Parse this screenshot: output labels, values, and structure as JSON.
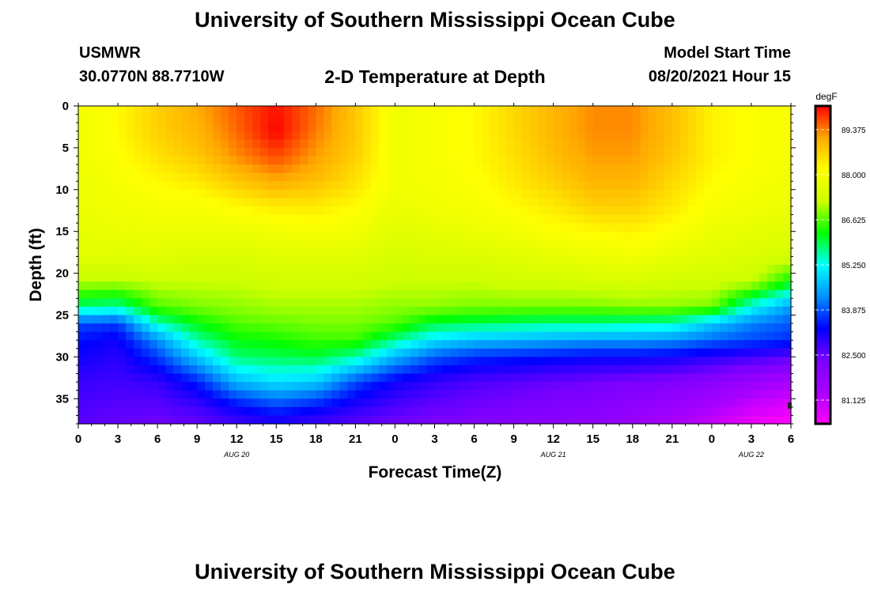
{
  "page": {
    "title_top": "University of Southern Mississippi Ocean Cube",
    "title_bottom": "University of Southern Mississippi Ocean Cube",
    "station": "USMWR",
    "coords": "30.0770N  88.7710W",
    "chart_title": "2-D Temperature at Depth",
    "model_start_label": "Model Start Time",
    "model_start_value": "08/20/2021 Hour 15"
  },
  "chart_data": {
    "type": "heatmap",
    "title": "2-D Temperature at Depth",
    "xlabel": "Forecast Time(Z)",
    "ylabel": "Depth (ft)",
    "x_range_hours": [
      0,
      54
    ],
    "ylim": [
      0,
      38
    ],
    "y_inverted": true,
    "x_ticks": [
      {
        "h": 0,
        "label": "0"
      },
      {
        "h": 3,
        "label": "3"
      },
      {
        "h": 6,
        "label": "6"
      },
      {
        "h": 9,
        "label": "9"
      },
      {
        "h": 12,
        "label": "12"
      },
      {
        "h": 15,
        "label": "15"
      },
      {
        "h": 18,
        "label": "18"
      },
      {
        "h": 21,
        "label": "21"
      },
      {
        "h": 24,
        "label": "0"
      },
      {
        "h": 27,
        "label": "3"
      },
      {
        "h": 30,
        "label": "6"
      },
      {
        "h": 33,
        "label": "9"
      },
      {
        "h": 36,
        "label": "12"
      },
      {
        "h": 39,
        "label": "15"
      },
      {
        "h": 42,
        "label": "18"
      },
      {
        "h": 45,
        "label": "21"
      },
      {
        "h": 48,
        "label": "0"
      },
      {
        "h": 51,
        "label": "3"
      },
      {
        "h": 54,
        "label": "6"
      }
    ],
    "date_labels": [
      {
        "h": 12,
        "label": "AUG 20"
      },
      {
        "h": 36,
        "label": "AUG 21"
      },
      {
        "h": 51,
        "label": "AUG 22"
      }
    ],
    "y_ticks": [
      0,
      5,
      10,
      15,
      20,
      25,
      30,
      35
    ],
    "colorbar": {
      "unit": "degF",
      "min": 80.4,
      "max": 90.1,
      "tick_values": [
        89.375,
        88.0,
        86.625,
        85.25,
        83.875,
        82.5,
        81.125
      ],
      "tick_labels": [
        "89.375",
        "88.000",
        "86.625",
        "85.250",
        "83.875",
        "82.500",
        "81.125"
      ],
      "colors": [
        "#ff00ff",
        "#aa00ff",
        "#7a00ff",
        "#0000ff",
        "#0090ff",
        "#00ffff",
        "#00ff00",
        "#ccff00",
        "#ffff00",
        "#ffaa00",
        "#ff0000"
      ]
    },
    "grid_x_hours": [
      0,
      3,
      6,
      9,
      12,
      15,
      18,
      21,
      24,
      27,
      30,
      33,
      36,
      39,
      42,
      45,
      48,
      51,
      54
    ],
    "grid_depths_ft": [
      0,
      3,
      6,
      9,
      12,
      15,
      18,
      21,
      24,
      26,
      28,
      30,
      33,
      36,
      38
    ],
    "values_degF": [
      [
        87.9,
        87.9,
        87.9,
        87.8,
        87.8,
        87.7,
        87.6,
        87.1,
        85.8,
        83.8,
        83.4,
        83.2,
        82.9,
        82.7,
        82.6
      ],
      [
        88.2,
        88.2,
        88.1,
        88.0,
        87.9,
        87.8,
        87.6,
        87.1,
        85.6,
        83.7,
        83.2,
        83.0,
        82.8,
        82.6,
        82.5
      ],
      [
        88.7,
        88.7,
        88.5,
        88.2,
        88.0,
        87.8,
        87.6,
        87.2,
        86.6,
        85.5,
        84.3,
        83.7,
        82.9,
        82.6,
        82.4
      ],
      [
        89.1,
        89.0,
        88.8,
        88.4,
        88.0,
        87.8,
        87.5,
        87.2,
        86.8,
        86.2,
        85.6,
        84.8,
        83.5,
        82.8,
        82.5
      ],
      [
        89.6,
        89.5,
        89.3,
        88.8,
        88.2,
        87.8,
        87.5,
        87.2,
        86.9,
        86.6,
        86.2,
        85.8,
        84.6,
        83.3,
        82.8
      ],
      [
        90.0,
        90.1,
        89.7,
        89.1,
        88.4,
        87.9,
        87.6,
        87.3,
        87.0,
        86.7,
        86.3,
        85.9,
        85.0,
        83.7,
        83.0
      ],
      [
        89.5,
        89.4,
        89.2,
        88.9,
        88.4,
        88.0,
        87.6,
        87.3,
        87.0,
        86.8,
        86.5,
        86.0,
        84.8,
        83.4,
        82.8
      ],
      [
        88.8,
        88.8,
        88.7,
        88.5,
        88.2,
        87.9,
        87.6,
        87.3,
        87.0,
        86.8,
        86.5,
        85.6,
        83.8,
        83.0,
        82.6
      ],
      [
        87.9,
        87.9,
        87.9,
        87.9,
        87.8,
        87.6,
        87.4,
        87.2,
        86.9,
        86.6,
        85.7,
        84.6,
        83.2,
        82.7,
        82.4
      ],
      [
        88.0,
        88.0,
        88.0,
        88.0,
        87.9,
        87.7,
        87.5,
        87.2,
        86.9,
        86.0,
        85.0,
        83.9,
        82.9,
        82.5,
        82.3
      ],
      [
        88.2,
        88.2,
        88.2,
        88.1,
        88.0,
        87.8,
        87.5,
        87.2,
        86.8,
        85.9,
        84.7,
        83.6,
        82.7,
        82.4,
        82.2
      ],
      [
        88.6,
        88.6,
        88.5,
        88.4,
        88.2,
        87.9,
        87.6,
        87.3,
        86.8,
        85.8,
        84.6,
        83.5,
        82.6,
        82.3,
        82.1
      ],
      [
        89.0,
        89.0,
        88.9,
        88.7,
        88.4,
        88.1,
        87.7,
        87.3,
        86.8,
        85.7,
        84.5,
        83.4,
        82.5,
        82.2,
        82.0
      ],
      [
        89.3,
        89.3,
        89.2,
        89.0,
        88.7,
        88.2,
        87.8,
        87.4,
        86.8,
        85.7,
        84.4,
        83.3,
        82.4,
        82.1,
        81.9
      ],
      [
        89.3,
        89.3,
        89.2,
        89.0,
        88.7,
        88.3,
        87.9,
        87.4,
        86.9,
        85.6,
        84.4,
        83.3,
        82.3,
        81.9,
        81.7
      ],
      [
        88.9,
        88.9,
        88.8,
        88.6,
        88.4,
        88.1,
        87.7,
        87.3,
        86.9,
        85.5,
        84.3,
        83.2,
        82.2,
        81.7,
        81.4
      ],
      [
        88.3,
        88.3,
        88.3,
        88.2,
        88.0,
        87.8,
        87.6,
        87.3,
        86.8,
        84.8,
        84.0,
        83.0,
        82.0,
        81.4,
        81.0
      ],
      [
        88.1,
        88.1,
        88.1,
        88.0,
        87.9,
        87.7,
        87.5,
        87.2,
        85.3,
        84.2,
        83.8,
        82.8,
        81.7,
        81.0,
        80.6
      ],
      [
        88.0,
        88.0,
        88.0,
        87.9,
        87.8,
        87.6,
        87.4,
        86.2,
        84.4,
        83.9,
        83.6,
        82.6,
        81.4,
        80.7,
        80.4
      ]
    ]
  }
}
